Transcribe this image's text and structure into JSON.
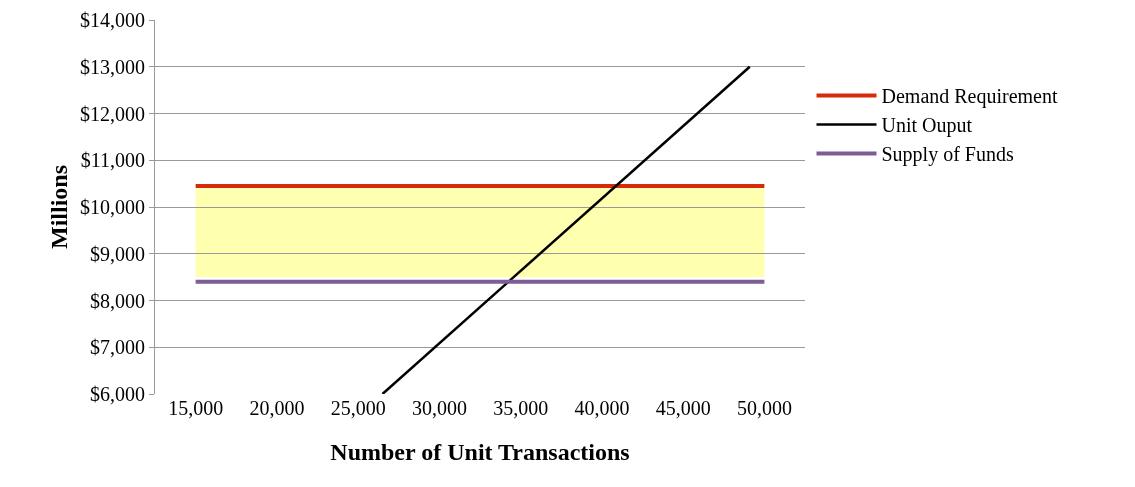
{
  "chart_data": {
    "type": "line",
    "xlabel": "Number of Unit Transactions",
    "ylabel": "Millions",
    "x": [
      15000,
      50000
    ],
    "series": [
      {
        "name": "Demand Requirement",
        "color": "#d62b0a",
        "values": [
          10450,
          10450
        ]
      },
      {
        "name": "Unit Ouput",
        "color": "#000000",
        "x": [
          26500,
          49100
        ],
        "values": [
          6000,
          13000
        ]
      },
      {
        "name": "Supply of Funds",
        "color": "#7b5e94",
        "values": [
          8400,
          8400
        ]
      }
    ],
    "bands": [
      {
        "axis": "y",
        "from": 8500,
        "to": 10400,
        "color": "#ffffb0"
      }
    ],
    "xlim": [
      12500,
      52500
    ],
    "xticks": [
      {
        "value": 15000,
        "label": "15,000"
      },
      {
        "value": 20000,
        "label": "20,000"
      },
      {
        "value": 25000,
        "label": "25,000"
      },
      {
        "value": 30000,
        "label": "30,000"
      },
      {
        "value": 35000,
        "label": "35,000"
      },
      {
        "value": 40000,
        "label": "40,000"
      },
      {
        "value": 45000,
        "label": "45,000"
      },
      {
        "value": 50000,
        "label": "50,000"
      }
    ],
    "ylim": [
      6000,
      14000
    ],
    "yticks": [
      {
        "value": 6000,
        "label": "$6,000"
      },
      {
        "value": 7000,
        "label": "$7,000"
      },
      {
        "value": 8000,
        "label": "$8,000"
      },
      {
        "value": 9000,
        "label": "$9,000"
      },
      {
        "value": 10000,
        "label": "$10,000"
      },
      {
        "value": 11000,
        "label": "$11,000"
      },
      {
        "value": 12000,
        "label": "$12,000"
      },
      {
        "value": 13000,
        "label": "$13,000"
      },
      {
        "value": 14000,
        "label": "$14,000"
      }
    ],
    "grid": "y",
    "legend": "right",
    "marker": "none",
    "line_style": "solid"
  }
}
